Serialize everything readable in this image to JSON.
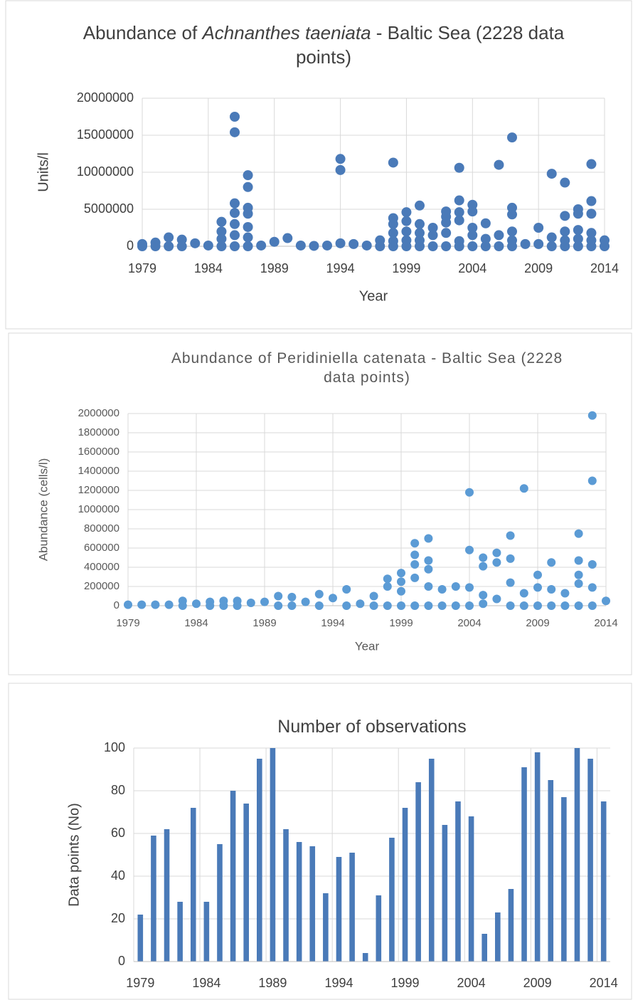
{
  "chart_data": [
    {
      "type": "scatter",
      "title_runs": [
        "Abundance of ",
        "Achnanthes taeniata",
        " - Baltic Sea (2228 data points)"
      ],
      "x_label": "Year",
      "y_label": "Units/l",
      "color": "#4a7ab8",
      "grid": true,
      "xlim": [
        1979,
        2014
      ],
      "xticks": [
        1979,
        1984,
        1989,
        1994,
        1999,
        2004,
        2009,
        2014
      ],
      "ylim": [
        0,
        20000000
      ],
      "yticks": [
        0,
        5000000,
        10000000,
        15000000,
        20000000
      ],
      "x": [
        1979,
        1979,
        1980,
        1980,
        1981,
        1981,
        1982,
        1982,
        1983,
        1984,
        1985,
        1985,
        1985,
        1985,
        1986,
        1986,
        1986,
        1986,
        1986,
        1986,
        1986,
        1987,
        1987,
        1987,
        1987,
        1987,
        1987,
        1987,
        1988,
        1989,
        1990,
        1991,
        1992,
        1993,
        1994,
        1994,
        1994,
        1995,
        1996,
        1997,
        1997,
        1998,
        1998,
        1998,
        1998,
        1998,
        1998,
        1999,
        1999,
        1999,
        1999,
        1999,
        2000,
        2000,
        2000,
        2000,
        2000,
        2001,
        2001,
        2001,
        2002,
        2002,
        2002,
        2002,
        2002,
        2003,
        2003,
        2003,
        2003,
        2003,
        2003,
        2004,
        2004,
        2004,
        2004,
        2004,
        2005,
        2005,
        2005,
        2006,
        2006,
        2006,
        2007,
        2007,
        2007,
        2007,
        2007,
        2007,
        2008,
        2009,
        2009,
        2010,
        2010,
        2010,
        2011,
        2011,
        2011,
        2011,
        2011,
        2012,
        2012,
        2012,
        2012,
        2012,
        2013,
        2013,
        2013,
        2013,
        2013,
        2013,
        2014,
        2014
      ],
      "values": [
        300000,
        0,
        500000,
        0,
        1200000,
        0,
        900000,
        0,
        400000,
        100000,
        3300000,
        2000000,
        1000000,
        0,
        17500000,
        15400000,
        5800000,
        4500000,
        3000000,
        1500000,
        0,
        9600000,
        8000000,
        5200000,
        4400000,
        2600000,
        1200000,
        0,
        100000,
        600000,
        1100000,
        100000,
        50000,
        100000,
        11800000,
        10300000,
        400000,
        300000,
        100000,
        800000,
        0,
        11300000,
        3800000,
        3000000,
        1800000,
        700000,
        0,
        4600000,
        3400000,
        2000000,
        800000,
        0,
        5500000,
        3000000,
        1800000,
        800000,
        0,
        2500000,
        1500000,
        0,
        4700000,
        4000000,
        3200000,
        1800000,
        0,
        10600000,
        6200000,
        4600000,
        3500000,
        700000,
        0,
        5600000,
        4700000,
        2500000,
        1500000,
        0,
        3100000,
        1000000,
        0,
        11000000,
        1500000,
        0,
        14700000,
        5200000,
        4300000,
        2000000,
        800000,
        0,
        300000,
        2500000,
        300000,
        9800000,
        1200000,
        0,
        8600000,
        4100000,
        2000000,
        800000,
        0,
        5000000,
        4400000,
        2200000,
        1000000,
        0,
        11100000,
        6100000,
        4400000,
        1800000,
        800000,
        0,
        800000,
        0
      ]
    },
    {
      "type": "scatter",
      "title_runs": [
        "Abundance of Peridiniella catenata - Baltic Sea (2228 data points)"
      ],
      "x_label": "Year",
      "y_label": "Abundance (cells/l)",
      "color": "#5b9bd5",
      "grid": true,
      "xlim": [
        1979,
        2014
      ],
      "xticks": [
        1979,
        1984,
        1989,
        1994,
        1999,
        2004,
        2009,
        2014
      ],
      "ylim": [
        0,
        2000000
      ],
      "yticks": [
        0,
        200000,
        400000,
        600000,
        800000,
        1000000,
        1200000,
        1400000,
        1600000,
        1800000,
        2000000
      ],
      "x": [
        1979,
        1980,
        1981,
        1982,
        1983,
        1983,
        1984,
        1985,
        1985,
        1986,
        1986,
        1987,
        1987,
        1988,
        1989,
        1990,
        1990,
        1991,
        1991,
        1992,
        1993,
        1993,
        1994,
        1995,
        1995,
        1996,
        1997,
        1997,
        1998,
        1998,
        1998,
        1999,
        1999,
        1999,
        1999,
        2000,
        2000,
        2000,
        2000,
        2000,
        2001,
        2001,
        2001,
        2001,
        2001,
        2002,
        2002,
        2003,
        2003,
        2004,
        2004,
        2004,
        2004,
        2005,
        2005,
        2005,
        2005,
        2006,
        2006,
        2006,
        2007,
        2007,
        2007,
        2007,
        2008,
        2008,
        2008,
        2009,
        2009,
        2009,
        2010,
        2010,
        2010,
        2011,
        2011,
        2012,
        2012,
        2012,
        2012,
        2012,
        2013,
        2013,
        2013,
        2013,
        2013,
        2014
      ],
      "values": [
        10000,
        10000,
        10000,
        10000,
        50000,
        0,
        20000,
        40000,
        0,
        50000,
        0,
        50000,
        0,
        30000,
        40000,
        100000,
        0,
        90000,
        0,
        40000,
        120000,
        0,
        80000,
        170000,
        0,
        20000,
        100000,
        0,
        280000,
        200000,
        0,
        340000,
        250000,
        150000,
        0,
        650000,
        530000,
        430000,
        290000,
        0,
        700000,
        470000,
        380000,
        200000,
        0,
        170000,
        0,
        200000,
        0,
        1180000,
        580000,
        190000,
        0,
        500000,
        410000,
        110000,
        20000,
        550000,
        450000,
        70000,
        730000,
        490000,
        240000,
        0,
        1220000,
        130000,
        0,
        320000,
        190000,
        0,
        450000,
        170000,
        0,
        130000,
        0,
        750000,
        470000,
        320000,
        230000,
        0,
        1980000,
        1300000,
        430000,
        190000,
        0,
        50000
      ]
    },
    {
      "type": "bar",
      "title_runs": [
        "Number of observations"
      ],
      "y_label": "Data points (No)",
      "color": "#4a7ab8",
      "grid": true,
      "categories": [
        "1979",
        null,
        null,
        null,
        null,
        "1984",
        null,
        null,
        null,
        null,
        "1989",
        null,
        null,
        null,
        null,
        "1994",
        null,
        null,
        null,
        null,
        "1999",
        null,
        null,
        null,
        null,
        "2004",
        null,
        null,
        null,
        null,
        "2009",
        null,
        null,
        null,
        null,
        "2014"
      ],
      "ylim": [
        0,
        100
      ],
      "yticks": [
        0,
        20,
        40,
        60,
        80,
        100
      ],
      "values": [
        22,
        59,
        62,
        28,
        72,
        28,
        55,
        80,
        74,
        95,
        100,
        62,
        56,
        54,
        32,
        49,
        51,
        4,
        31,
        58,
        72,
        84,
        95,
        64,
        75,
        68,
        13,
        23,
        34,
        91,
        98,
        85,
        77,
        100,
        95,
        75
      ]
    }
  ]
}
